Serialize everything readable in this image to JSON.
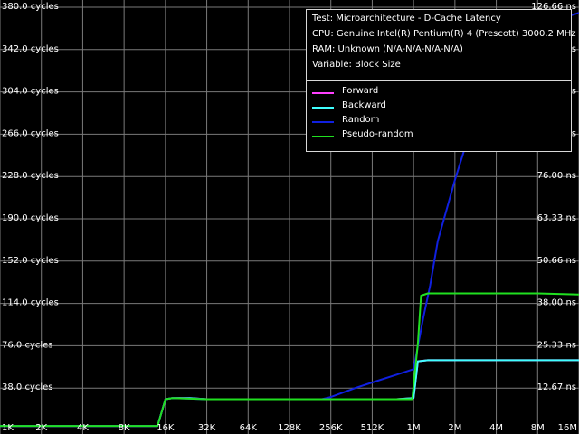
{
  "chart_data": {
    "type": "line",
    "info": {
      "test": "Test: Microarchitecture - D-Cache Latency",
      "cpu": "CPU: Genuine Intel(R) Pentium(R) 4 (Prescott) 3000.2 MHz",
      "ram": "RAM: Unknown (N/A-N/A-N/A-N/A)",
      "variable": "Variable: Block Size"
    },
    "x_ticks": [
      "1K",
      "2K",
      "4K",
      "8K",
      "16K",
      "32K",
      "64K",
      "128K",
      "256K",
      "512K",
      "1M",
      "2M",
      "4M",
      "8M",
      "16M"
    ],
    "y_left_ticks": [
      "38.0 cycles",
      "76.0 cycles",
      "114.0 cycles",
      "152.0 cycles",
      "190.0 cycles",
      "228.0 cycles",
      "266.0 cycles",
      "304.0 cycles",
      "342.0 cycles",
      "380.0 cycles"
    ],
    "y_right_ticks": [
      "12.67 ns",
      "25.33 ns",
      "38.00 ns",
      "50.66 ns",
      "63.33 ns",
      "76.00 ns",
      "88.66 ns",
      "101.33 ns",
      "113.99 ns",
      "126.66 ns"
    ],
    "ylim": [
      0,
      380
    ],
    "x_scale": "log2",
    "grid": true,
    "legend_placement": "top-right",
    "series": [
      {
        "name": "Forward",
        "color": "#ff40ff",
        "points": [
          [
            1,
            4
          ],
          [
            2,
            4
          ],
          [
            4,
            4
          ],
          [
            8,
            4
          ],
          [
            14,
            4
          ],
          [
            16,
            28
          ],
          [
            18,
            29
          ],
          [
            24,
            29
          ],
          [
            32,
            28
          ],
          [
            64,
            28
          ],
          [
            128,
            28
          ],
          [
            256,
            28
          ],
          [
            512,
            28
          ],
          [
            768,
            28
          ],
          [
            1024,
            29
          ],
          [
            1100,
            62
          ],
          [
            1300,
            63
          ],
          [
            2048,
            63
          ],
          [
            4096,
            63
          ],
          [
            8192,
            63
          ],
          [
            16384,
            63
          ]
        ]
      },
      {
        "name": "Backward",
        "color": "#40ffff",
        "points": [
          [
            1,
            4
          ],
          [
            2,
            4
          ],
          [
            4,
            4
          ],
          [
            8,
            4
          ],
          [
            14,
            4
          ],
          [
            16,
            28
          ],
          [
            18,
            29
          ],
          [
            24,
            29
          ],
          [
            32,
            28
          ],
          [
            64,
            28
          ],
          [
            128,
            28
          ],
          [
            256,
            28
          ],
          [
            512,
            28
          ],
          [
            768,
            28
          ],
          [
            1024,
            29
          ],
          [
            1100,
            62
          ],
          [
            1300,
            63
          ],
          [
            2048,
            63
          ],
          [
            4096,
            63
          ],
          [
            8192,
            63
          ],
          [
            16384,
            63
          ]
        ]
      },
      {
        "name": "Random",
        "color": "#1020e0",
        "points": [
          [
            1,
            4
          ],
          [
            2,
            4
          ],
          [
            4,
            4
          ],
          [
            8,
            4
          ],
          [
            14,
            4
          ],
          [
            16,
            28
          ],
          [
            18,
            29
          ],
          [
            32,
            28
          ],
          [
            64,
            28
          ],
          [
            128,
            28
          ],
          [
            220,
            28
          ],
          [
            256,
            30
          ],
          [
            384,
            38
          ],
          [
            512,
            43
          ],
          [
            768,
            50
          ],
          [
            1024,
            55
          ],
          [
            1200,
            100
          ],
          [
            1350,
            130
          ],
          [
            1536,
            170
          ],
          [
            2048,
            225
          ],
          [
            2900,
            285
          ],
          [
            4096,
            322
          ],
          [
            5800,
            345
          ],
          [
            8192,
            360
          ],
          [
            11500,
            369
          ],
          [
            16384,
            375
          ]
        ]
      },
      {
        "name": "Pseudo-random",
        "color": "#20e020",
        "points": [
          [
            1,
            4
          ],
          [
            2,
            4
          ],
          [
            4,
            4
          ],
          [
            8,
            4
          ],
          [
            14,
            4
          ],
          [
            16,
            28
          ],
          [
            18,
            29
          ],
          [
            32,
            28
          ],
          [
            64,
            28
          ],
          [
            128,
            28
          ],
          [
            256,
            28
          ],
          [
            512,
            28
          ],
          [
            768,
            28
          ],
          [
            1000,
            28
          ],
          [
            1100,
            78
          ],
          [
            1160,
            121
          ],
          [
            1300,
            123
          ],
          [
            2048,
            123
          ],
          [
            4096,
            123
          ],
          [
            8192,
            123
          ],
          [
            16384,
            122
          ]
        ]
      }
    ]
  }
}
